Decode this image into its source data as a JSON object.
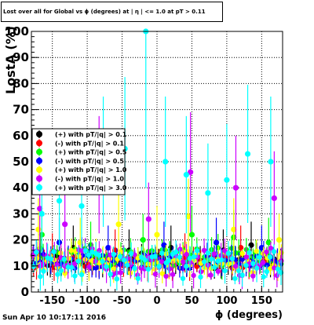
{
  "chart_data": {
    "type": "scatter",
    "title": "Lost over all for Global vs ϕ (degrees) at | η | <= 1.0 at pT > 0.11",
    "xlabel": "ϕ (degrees)",
    "ylabel": "LostA (%)",
    "xlim": [
      -180,
      180
    ],
    "ylim": [
      0,
      100
    ],
    "x_ticks": [
      "-150",
      "-100",
      "-50",
      "0",
      "50",
      "100",
      "150"
    ],
    "y_ticks": [
      "0",
      "10",
      "20",
      "30",
      "40",
      "50",
      "60",
      "70",
      "80",
      "90",
      "100"
    ],
    "grid": true,
    "legend_position": "middle-left",
    "series": [
      {
        "name": "(+) with pT/|q| > 0.1",
        "color": "#000000",
        "y_range": [
          9,
          15
        ],
        "spike_x": [
          -120,
          -40,
          20,
          95,
          135
        ],
        "spike_y": [
          17,
          16,
          17,
          16,
          18
        ]
      },
      {
        "name": "(-) with pT/|q| > 0.1",
        "color": "#ff0000",
        "y_range": [
          9,
          14
        ],
        "spike_x": [
          -150,
          -60,
          40,
          120
        ],
        "spike_y": [
          15,
          16,
          15,
          17
        ]
      },
      {
        "name": "(+) with pT/|q| > 0.5",
        "color": "#00ff00",
        "y_range": [
          10,
          17
        ],
        "spike_x": [
          -165,
          -95,
          -20,
          50,
          110,
          160
        ],
        "spike_y": [
          22,
          18,
          20,
          22,
          21,
          19
        ]
      },
      {
        "name": "(-) with pT/|q| > 0.5",
        "color": "#0000ff",
        "y_range": [
          9,
          15
        ],
        "spike_x": [
          -140,
          -70,
          10,
          85,
          150
        ],
        "spike_y": [
          19,
          17,
          18,
          19,
          17
        ]
      },
      {
        "name": "(+) with pT/|q| > 1.0",
        "color": "#ffff00",
        "y_range": [
          7,
          16
        ],
        "spike_x": [
          -170,
          -110,
          -55,
          0,
          45,
          110,
          175
        ],
        "spike_y": [
          24,
          19,
          26,
          22,
          29,
          24,
          20
        ]
      },
      {
        "name": "(-) with pT/|q| > 1.0",
        "color": "#cc00ff",
        "y_range": [
          6,
          17
        ],
        "spike_x": [
          -168,
          -132,
          -83,
          -12,
          48,
          113,
          168
        ],
        "spike_y": [
          32,
          26,
          45,
          28,
          46,
          40,
          36
        ]
      },
      {
        "name": "(+) with pT/|q| > 3.0",
        "color": "#00ffff",
        "y_range": [
          5,
          16
        ],
        "spike_x": [
          -165,
          -140,
          -108,
          -77,
          -46,
          -16,
          12,
          42,
          73,
          100,
          130,
          163
        ],
        "spike_y": [
          30,
          35,
          33,
          50,
          55,
          100,
          50,
          45,
          38,
          43,
          53,
          50
        ]
      }
    ]
  },
  "footer": {
    "timestamp": "Sun Apr 10 10:17:11 2016"
  }
}
